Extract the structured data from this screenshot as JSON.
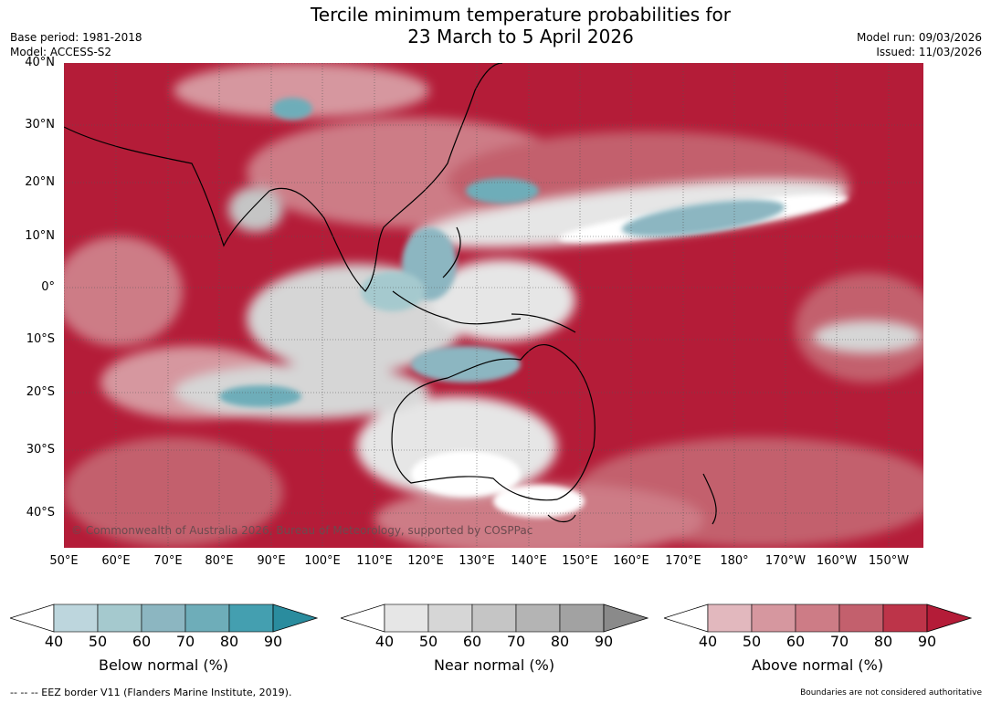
{
  "header": {
    "title_line1": "Tercile minimum temperature probabilities for",
    "title_line2": "23 March to 5 April 2026",
    "base_period": "Base period: 1981-2018",
    "model": "Model: ACCESS-S2",
    "model_run": "Model run: 09/03/2026",
    "issued": "Issued: 11/03/2026"
  },
  "map": {
    "lat_labels": [
      "40°N",
      "30°N",
      "20°N",
      "10°N",
      "0°",
      "10°S",
      "20°S",
      "30°S",
      "40°S"
    ],
    "lon_labels": [
      "50°E",
      "60°E",
      "70°E",
      "80°E",
      "90°E",
      "100°E",
      "110°E",
      "120°E",
      "130°E",
      "140°E",
      "150°E",
      "160°E",
      "170°E",
      "180°",
      "170°W",
      "160°W",
      "150°W"
    ],
    "copyright": "© Commonwealth of Australia 2026, Bureau of Meteorology, supported by COSPPac"
  },
  "colorbars": [
    {
      "label": "Below normal (%)",
      "ticks": [
        "40",
        "50",
        "60",
        "70",
        "80",
        "90"
      ],
      "colors": [
        "#bdd6dd",
        "#a5c9ce",
        "#8cb6c1",
        "#6eadb9",
        "#449fb0",
        "#2a8c9e"
      ]
    },
    {
      "label": "Near normal (%)",
      "ticks": [
        "40",
        "50",
        "60",
        "70",
        "80",
        "90"
      ],
      "colors": [
        "#e6e6e6",
        "#d6d6d6",
        "#c5c5c5",
        "#b4b4b4",
        "#a2a2a2",
        "#8a8a8a"
      ]
    },
    {
      "label": "Above normal (%)",
      "ticks": [
        "40",
        "50",
        "60",
        "70",
        "80",
        "90"
      ],
      "colors": [
        "#e2b8be",
        "#d6979f",
        "#cd7c86",
        "#c3606d",
        "#bd3449",
        "#b41c38"
      ]
    }
  ],
  "footer": {
    "eez": "--  --  -- EEZ border V11 (Flanders Marine Institute, 2019).",
    "disclaimer": "Boundaries are not considered authoritative"
  }
}
